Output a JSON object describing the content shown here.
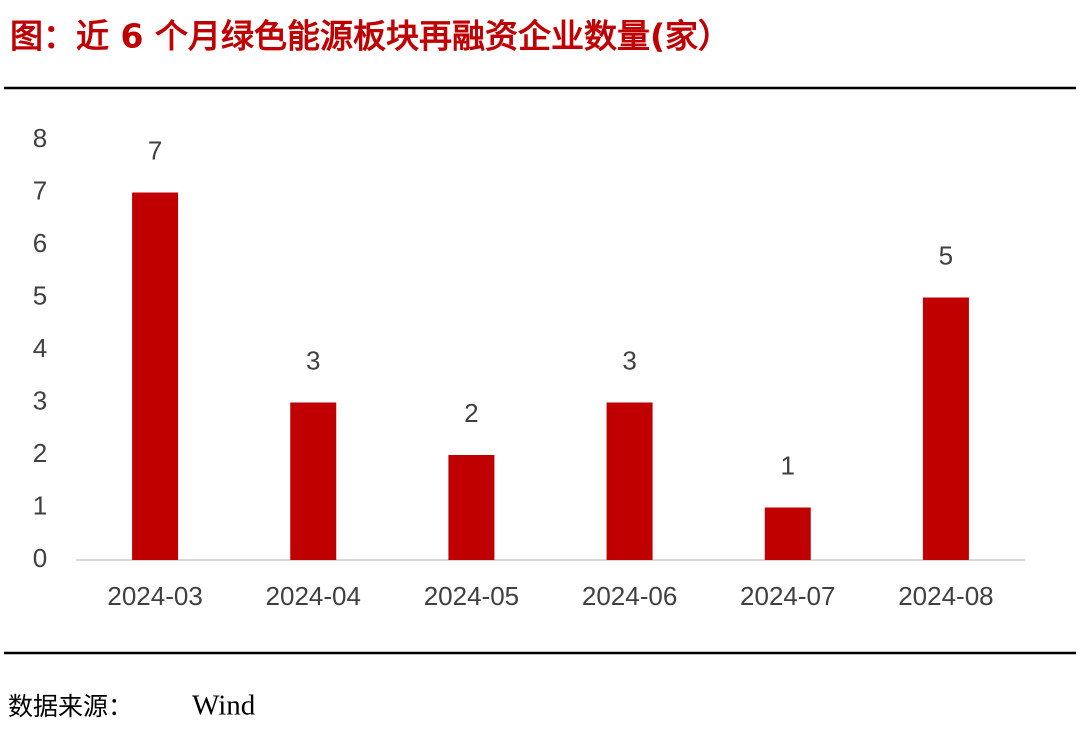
{
  "chart_data": {
    "type": "bar",
    "title": "图：近 6 个月绿色能源板块再融资企业数量(家）",
    "categories": [
      "2024-03",
      "2024-04",
      "2024-05",
      "2024-06",
      "2024-07",
      "2024-08"
    ],
    "values": [
      7,
      3,
      2,
      3,
      1,
      5
    ],
    "color": "#c00000",
    "ylim": [
      0,
      8
    ],
    "yticks": [
      0,
      1,
      2,
      3,
      4,
      5,
      6,
      7,
      8
    ],
    "grid": false
  },
  "source_label": "数据来源：",
  "source": "Wind"
}
